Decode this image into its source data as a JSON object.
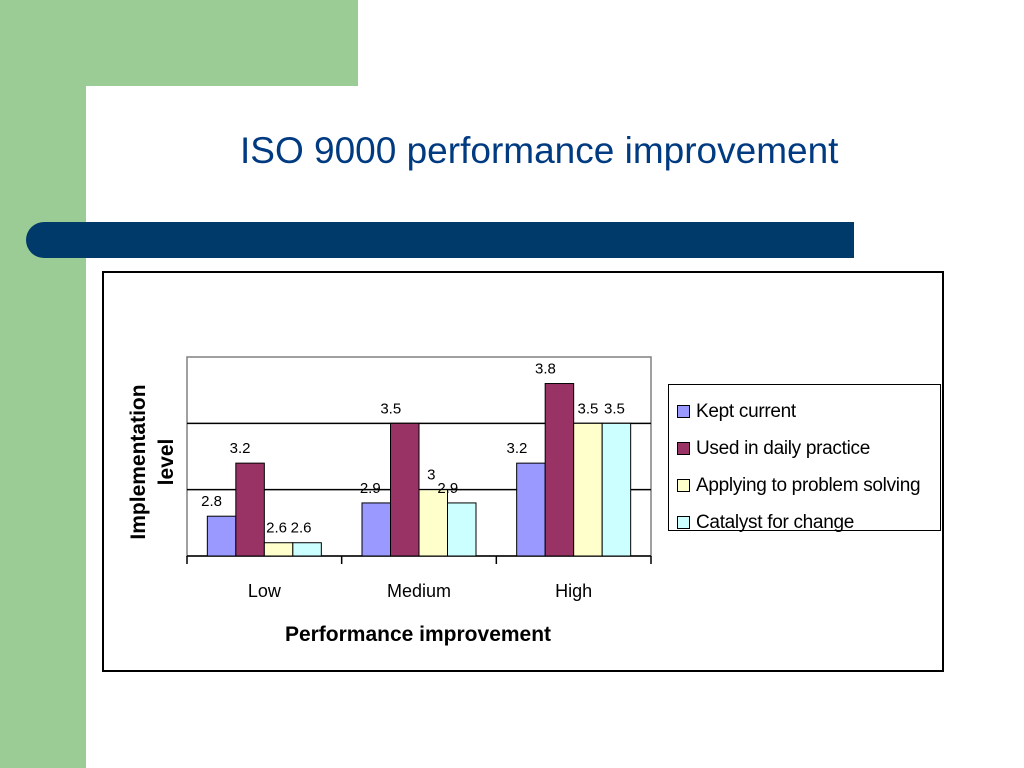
{
  "slide": {
    "title": "ISO 9000 performance improvement"
  },
  "colors": {
    "green": "#9ccc96",
    "bar": "#003a6b",
    "title": "#003a80"
  },
  "chart_data": {
    "type": "bar",
    "title": "",
    "xlabel": "Performance improvement",
    "ylabel": "Implementation level",
    "categories": [
      "Low",
      "Medium",
      "High"
    ],
    "ylim": [
      2.5,
      4
    ],
    "grid": true,
    "legend_position": "right",
    "series": [
      {
        "name": "Kept current",
        "color": "#9999ff",
        "values": [
          2.8,
          2.9,
          3.2
        ]
      },
      {
        "name": "Used in daily practice",
        "color": "#993366",
        "values": [
          3.2,
          3.5,
          3.8
        ]
      },
      {
        "name": "Applying to problem solving",
        "color": "#ffffcc",
        "values": [
          2.6,
          3,
          3.5
        ]
      },
      {
        "name": "Catalyst for change",
        "color": "#ccffff",
        "values": [
          2.6,
          2.9,
          3.5
        ]
      }
    ]
  }
}
